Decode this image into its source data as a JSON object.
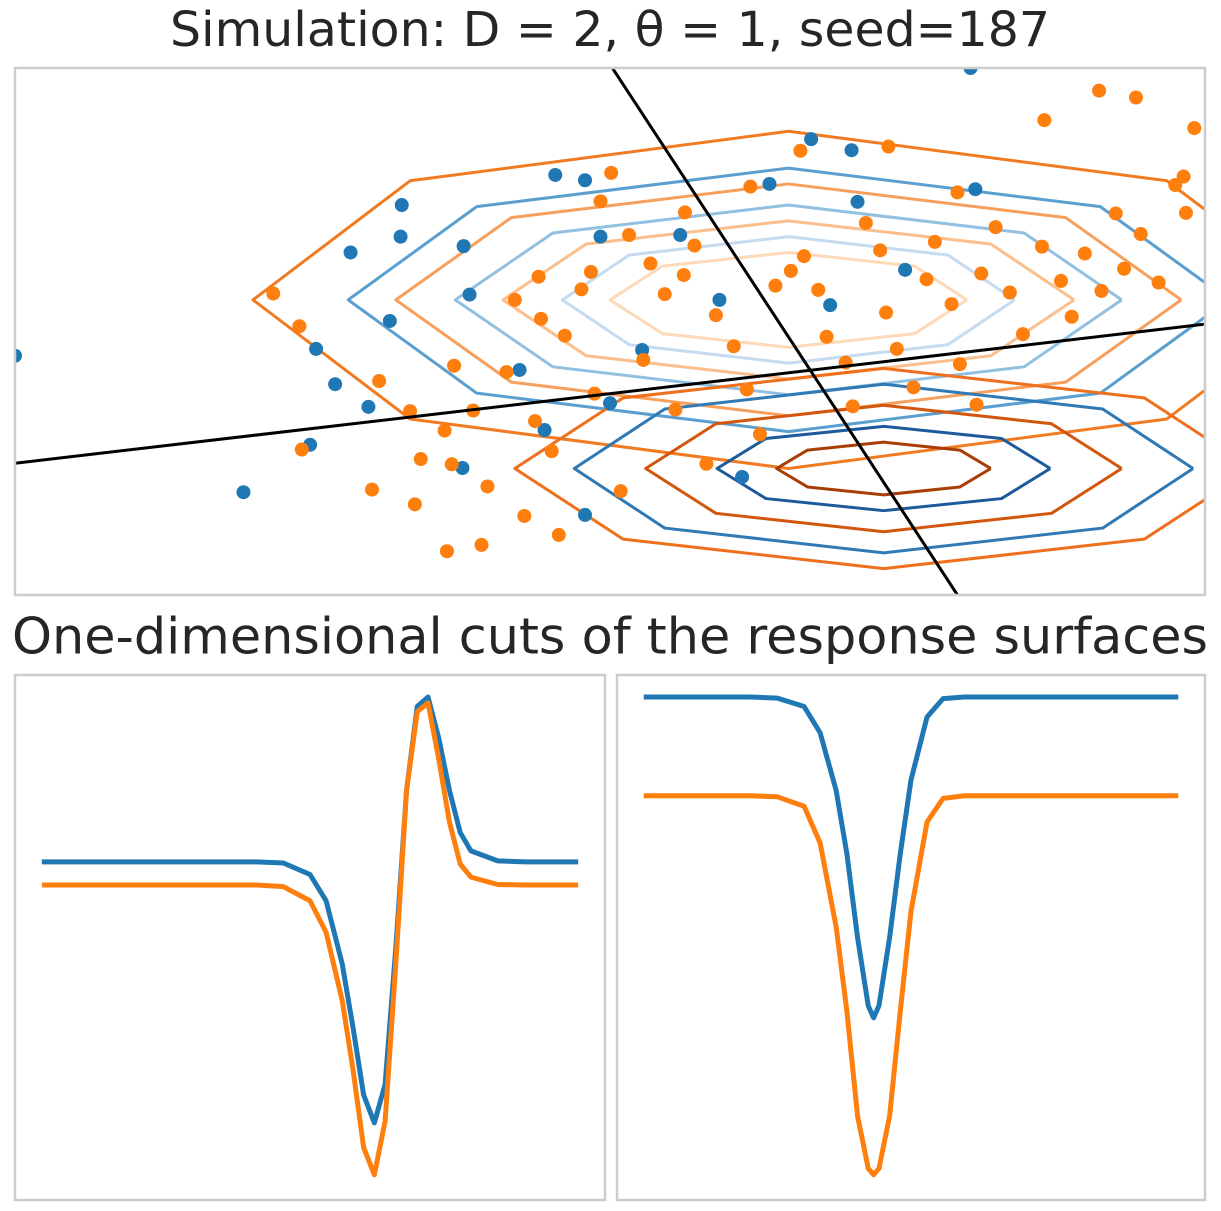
{
  "chart_data": [
    {
      "type": "scatter",
      "title": "Simulation: D = 2, θ = 1, seed=187",
      "xlim": [
        0,
        100
      ],
      "ylim": [
        0,
        100
      ],
      "series": [
        {
          "type": "line",
          "color": "#f07b22",
          "x": [
            110,
            96.8,
            65,
            33.2,
            20,
            33.2,
            65,
            96.8,
            110
          ],
          "values": [
            56,
            78.6,
            88,
            78.6,
            56,
            33.4,
            24,
            33.4,
            56
          ]
        },
        {
          "type": "line",
          "color": "#5a9fcf",
          "x": [
            102,
            91.2,
            65,
            38.8,
            28,
            38.8,
            65,
            91.2,
            102
          ],
          "values": [
            56,
            73.7,
            81,
            73.7,
            56,
            38.3,
            31,
            38.3,
            56
          ]
        },
        {
          "type": "line",
          "color": "#f79f5c",
          "x": [
            98,
            88.3,
            65,
            41.7,
            32,
            41.7,
            65,
            88.3,
            98
          ],
          "values": [
            56,
            71.6,
            78,
            71.6,
            56,
            40.4,
            34,
            40.4,
            56
          ]
        },
        {
          "type": "line",
          "color": "#92c0e0",
          "x": [
            93,
            84.8,
            65,
            45.2,
            37,
            45.2,
            65,
            84.8,
            93
          ],
          "values": [
            56,
            68.7,
            74,
            68.7,
            56,
            43.3,
            38,
            43.3,
            56
          ]
        },
        {
          "type": "line",
          "color": "#fbbf8d",
          "x": [
            89,
            82,
            65,
            48,
            41,
            48,
            65,
            82,
            89
          ],
          "values": [
            56,
            66.6,
            71,
            66.6,
            56,
            45.4,
            41,
            45.4,
            56
          ]
        },
        {
          "type": "line",
          "color": "#c6dbef",
          "x": [
            84,
            78.4,
            65,
            51.6,
            46,
            51.6,
            65,
            78.4,
            84
          ],
          "values": [
            56,
            64.5,
            68,
            64.5,
            56,
            47.5,
            44,
            47.5,
            56
          ]
        },
        {
          "type": "line",
          "color": "#fdd9b8",
          "x": [
            80,
            75.6,
            65,
            54.4,
            50,
            54.4,
            65,
            75.6,
            80
          ],
          "values": [
            56,
            62.4,
            65,
            62.4,
            56,
            49.6,
            47,
            49.6,
            56
          ]
        },
        {
          "type": "line",
          "color": "#ee6f1c",
          "x": [
            104,
            94.9,
            73,
            51.1,
            42,
            51.1,
            73,
            94.9,
            104
          ],
          "values": [
            24,
            37.4,
            43,
            37.4,
            24,
            10.6,
            5,
            10.6,
            24
          ]
        },
        {
          "type": "line",
          "color": "#2f79b5",
          "x": [
            99,
            91.4,
            73,
            54.6,
            47,
            54.6,
            73,
            91.4,
            99
          ],
          "values": [
            24,
            35.3,
            40,
            35.3,
            24,
            12.7,
            8,
            12.7,
            24
          ]
        },
        {
          "type": "line",
          "color": "#d2560e",
          "x": [
            93,
            87.1,
            73,
            58.9,
            53,
            58.9,
            73,
            87.1,
            93
          ],
          "values": [
            24,
            32.5,
            36,
            32.5,
            24,
            15.5,
            12,
            15.5,
            24
          ]
        },
        {
          "type": "line",
          "color": "#1c5a9c",
          "x": [
            87,
            82.9,
            73,
            63.1,
            59,
            63.1,
            73,
            82.9,
            87
          ],
          "values": [
            24,
            29.7,
            32,
            29.7,
            24,
            18.3,
            16,
            18.3,
            24
          ]
        },
        {
          "type": "line",
          "color": "#a83e05",
          "x": [
            82,
            79.4,
            73,
            66.6,
            64,
            66.6,
            73,
            79.4,
            82
          ],
          "values": [
            24,
            27.5,
            29,
            27.5,
            24,
            20.5,
            19,
            20.5,
            24
          ]
        },
        {
          "type": "scatter",
          "color": "#1f77b4",
          "x": [
            0,
            19.2,
            24.8,
            28.2,
            32.5,
            32.4,
            31.5,
            25.3,
            26.9,
            29.7,
            45.4,
            47.9,
            66.9,
            70.3,
            63.4,
            80.3,
            80.7,
            70.8,
            37.7,
            38.2,
            49.2,
            59.2,
            52.7,
            37.6,
            44.5,
            50,
            61.1,
            47.9,
            68.5,
            74.8,
            42.4,
            55.9
          ],
          "values": [
            45.4,
            19.5,
            28.5,
            65,
            74,
            68,
            52,
            46.7,
            40,
            35.7,
            79.7,
            78.7,
            86.5,
            84.4,
            78,
            100,
            77,
            74.6,
            66.2,
            57,
            68,
            56,
            46.5,
            24.1,
            31.3,
            36.4,
            22.4,
            15.2,
            55,
            61.7,
            42.7,
            68.3
          ]
        },
        {
          "type": "scatter",
          "color": "#ff7f0e",
          "x": [
            21.7,
            23.9,
            24.1,
            30.6,
            34.1,
            33.2,
            30,
            33.6,
            36.7,
            36.1,
            36.9,
            38.5,
            39.7,
            36.3,
            39.2,
            42.8,
            43.7,
            45.1,
            46.2,
            47.6,
            41.3,
            44.2,
            48.4,
            49.2,
            50.1,
            51.6,
            53.4,
            54.6,
            56.3,
            57.1,
            58.9,
            60.4,
            61.5,
            62.6,
            63.9,
            65.2,
            66.3,
            67.5,
            68.2,
            69.8,
            70.4,
            71.5,
            72.7,
            73.2,
            74.1,
            75.5,
            76.6,
            77.3,
            78.7,
            79.4,
            80.8,
            81.2,
            82.4,
            83.6,
            84.7,
            86.3,
            87.9,
            88.8,
            89.9,
            91.3,
            92.5,
            93.2,
            94.6,
            96.1,
            98.2,
            99.1,
            97.5,
            98.4,
            86.5,
            91.1,
            94.2,
            56.2,
            52.8,
            48.7,
            55.5,
            58.1,
            50.9,
            45.7,
            66,
            73.4,
            79.2,
            61.8,
            44,
            42
          ],
          "values": [
            57.2,
            51,
            27.6,
            40.6,
            25.8,
            34.9,
            20,
            17.2,
            24.8,
            31.2,
            43.5,
            35,
            20.6,
            8.3,
            9.5,
            15,
            33,
            27.3,
            49.2,
            58,
            42.3,
            52.4,
            61.3,
            74.7,
            80.1,
            68.3,
            62.9,
            57.1,
            72.6,
            66.3,
            53.1,
            47.2,
            39,
            30.5,
            58.7,
            61.5,
            64.3,
            57.9,
            49,
            44.1,
            35.8,
            70.6,
            65.4,
            53.6,
            46.7,
            39.4,
            59.9,
            67,
            55.2,
            43.8,
            36.1,
            61,
            69.8,
            57.4,
            49.5,
            66.1,
            59.6,
            52.8,
            64.8,
            57.7,
            72.4,
            61.9,
            68.5,
            59.3,
            79.4,
            88.6,
            77.8,
            72.5,
            90.1,
            95.7,
            94.4,
            60.7,
            44.6,
            38.2,
            35.2,
            24.9,
            19.7,
            11.4,
            84.3,
            85.1,
            76.4,
            77.5,
            60.4,
            56
          ]
        },
        {
          "type": "line",
          "color": "#000000",
          "x": [
            50.2,
            79.2
          ],
          "values": [
            100,
            0
          ]
        },
        {
          "type": "line",
          "color": "#000000",
          "x": [
            0,
            100
          ],
          "values": [
            25,
            51.4
          ]
        }
      ]
    },
    {
      "type": "line",
      "xlim": [
        -5,
        105
      ],
      "ylim": [
        0,
        100
      ],
      "series": [
        {
          "color": "#1f77b4",
          "x": [
            0,
            10,
            20,
            30,
            40,
            45,
            50,
            53,
            56,
            58,
            60,
            62,
            64,
            66,
            68,
            70,
            72,
            74,
            76,
            78,
            80,
            85,
            90,
            100
          ],
          "values": [
            64.4,
            64.4,
            64.4,
            64.4,
            64.4,
            64.2,
            62,
            57,
            45,
            33,
            20,
            14.7,
            22,
            48,
            78,
            94,
            95.8,
            88,
            78,
            70,
            66.5,
            64.6,
            64.4,
            64.4
          ]
        },
        {
          "color": "#ff7f0e",
          "x": [
            0,
            10,
            20,
            30,
            40,
            45,
            50,
            53,
            56,
            58,
            60,
            62,
            64,
            66,
            68,
            70,
            72,
            74,
            76,
            78,
            80,
            85,
            90,
            100
          ],
          "values": [
            60,
            60,
            60,
            60,
            60,
            59.7,
            57,
            51,
            38,
            25,
            10,
            4.8,
            15,
            45,
            78,
            93,
            94.7,
            84,
            72,
            64,
            61.5,
            60.1,
            60,
            60
          ]
        }
      ]
    },
    {
      "type": "line",
      "xlim": [
        -5,
        105
      ],
      "ylim": [
        0,
        100
      ],
      "series": [
        {
          "color": "#1f77b4",
          "x": [
            0,
            10,
            20,
            25,
            30,
            33,
            36,
            38,
            40,
            42,
            43,
            44,
            46,
            48,
            50,
            53,
            56,
            60,
            65,
            75,
            90,
            100
          ],
          "values": [
            95.8,
            95.8,
            95.8,
            95.6,
            94,
            89,
            78,
            66,
            50,
            37,
            34.7,
            37,
            50,
            66,
            80,
            92,
            95.5,
            95.8,
            95.8,
            95.8,
            95.8,
            95.8
          ]
        },
        {
          "color": "#ff7f0e",
          "x": [
            0,
            10,
            20,
            25,
            30,
            33,
            36,
            38,
            40,
            42,
            43,
            44,
            46,
            48,
            50,
            53,
            56,
            60,
            65,
            75,
            90,
            100
          ],
          "values": [
            77,
            77,
            77,
            76.8,
            75,
            68,
            52,
            36,
            16,
            6,
            4.8,
            6,
            16,
            36,
            55,
            72,
            76.5,
            77,
            77,
            77,
            77,
            77
          ]
        }
      ]
    }
  ],
  "section_title": "One-dimensional cuts of the response surfaces"
}
